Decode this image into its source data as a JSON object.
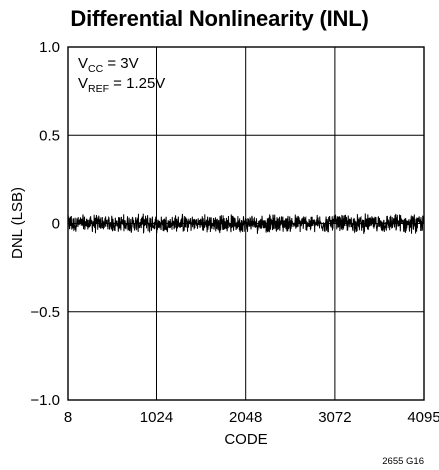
{
  "chart_data": {
    "type": "line",
    "title": "Differential Nonlinearity (INL)",
    "xlabel": "CODE",
    "ylabel": "DNL (LSB)",
    "xlim": [
      8,
      4095
    ],
    "ylim": [
      -1.0,
      1.0
    ],
    "x_ticks": [
      8,
      1024,
      2048,
      3072,
      4095
    ],
    "x_tick_labels": [
      "8",
      "1024",
      "2048",
      "3072",
      "4095"
    ],
    "y_ticks": [
      1.0,
      0.5,
      0,
      -0.5,
      -1.0
    ],
    "y_tick_labels": [
      "1.0",
      "0.5",
      "0",
      "−0.5",
      "−1.0"
    ],
    "grid": true,
    "series": [
      {
        "color": "#000000",
        "noise_band_lsb": 0.06,
        "x": [
          8,
          512,
          1024,
          1536,
          2048,
          2560,
          3072,
          3584,
          4095
        ],
        "values": [
          0,
          0,
          0,
          0,
          0,
          0,
          0,
          0,
          0
        ]
      }
    ],
    "annotations": [
      {
        "main": "V",
        "sub": "CC",
        "rest": " = 3V"
      },
      {
        "main": "V",
        "sub": "REF",
        "rest": " = 1.25V"
      }
    ],
    "figure_id": "2655 G16"
  }
}
